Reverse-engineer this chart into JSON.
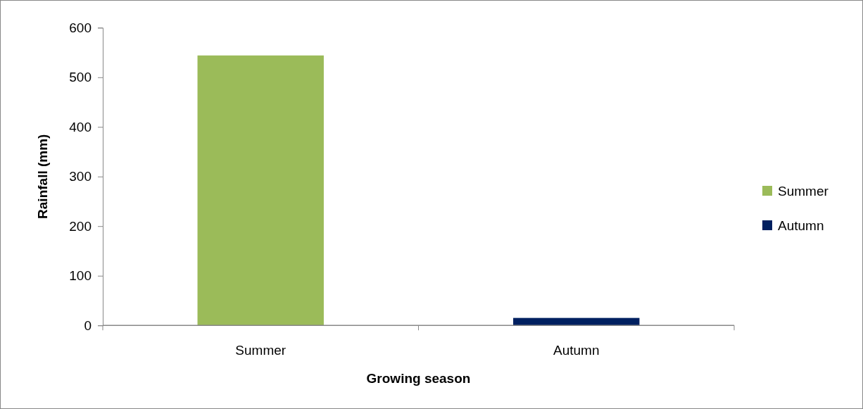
{
  "chart_data": {
    "type": "bar",
    "xlabel": "Growing season",
    "ylabel": "Rainfall (mm)",
    "categories": [
      "Summer",
      "Autumn"
    ],
    "series": [
      {
        "name": "Summer",
        "color": "#9bbb59",
        "values": [
          544,
          null
        ]
      },
      {
        "name": "Autumn",
        "color": "#002060",
        "values": [
          null,
          15
        ]
      }
    ],
    "ylim": [
      0,
      600
    ],
    "yticks": [
      0,
      100,
      200,
      300,
      400,
      500,
      600
    ],
    "legend": "right"
  }
}
